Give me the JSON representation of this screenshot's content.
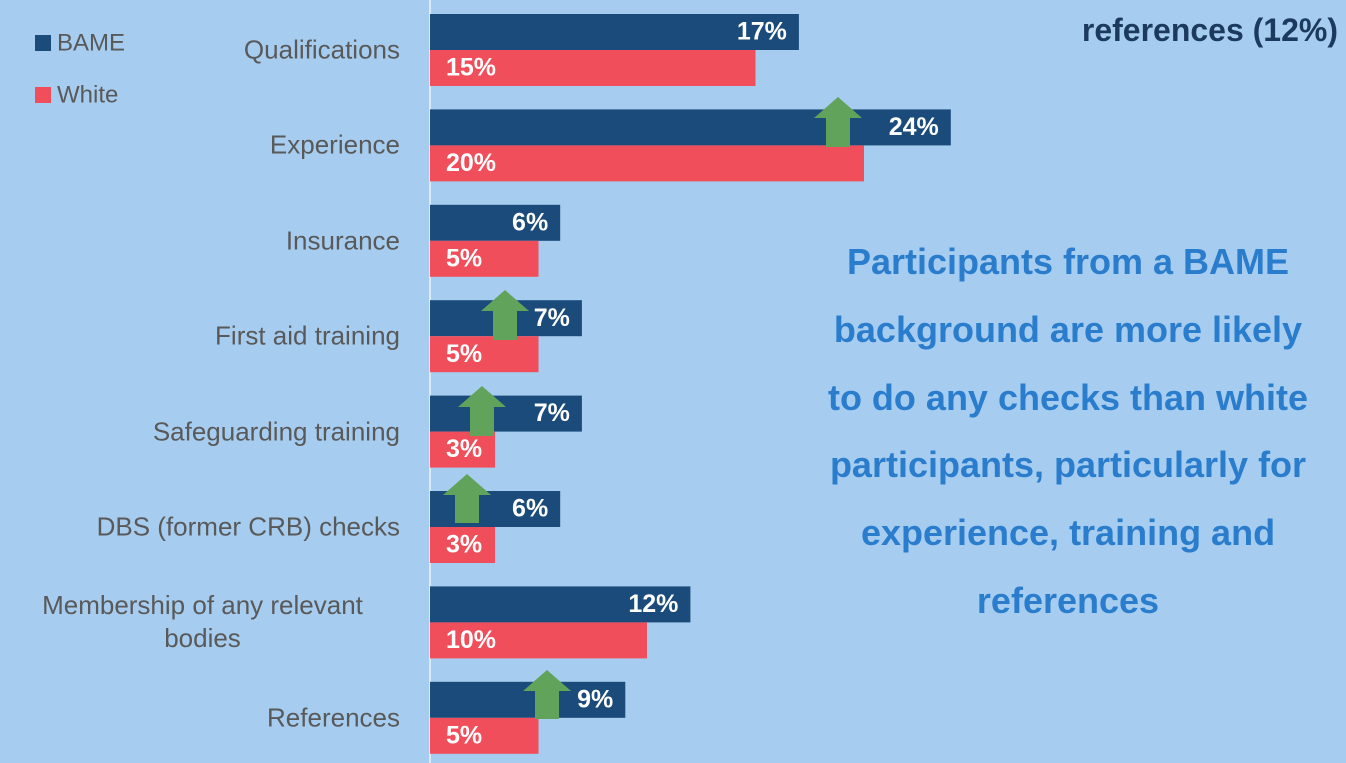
{
  "chart_data": {
    "type": "bar",
    "orientation": "horizontal",
    "title": "references (12%)",
    "annotation": "Participants from a BAME background are more likely to do any checks than white participants, particularly for experience, training and references",
    "categories": [
      "Qualifications",
      "Experience",
      "Insurance",
      "First aid training",
      "Safeguarding training",
      "DBS (former CRB) checks",
      "Membership of any relevant bodies",
      "References"
    ],
    "series": [
      {
        "name": "BAME",
        "color": "#1a4b7b",
        "values": [
          17,
          24,
          6,
          7,
          7,
          6,
          12,
          9
        ],
        "value_labels": [
          "17%",
          "24%",
          "6%",
          "7%",
          "7%",
          "6%",
          "12%",
          "9%"
        ]
      },
      {
        "name": "White",
        "color": "#f04e5b",
        "values": [
          15,
          20,
          5,
          5,
          3,
          3,
          10,
          5
        ],
        "value_labels": [
          "15%",
          "20%",
          "5%",
          "5%",
          "3%",
          "3%",
          "10%",
          "5%"
        ]
      }
    ],
    "legend": "top-left"
  }
}
